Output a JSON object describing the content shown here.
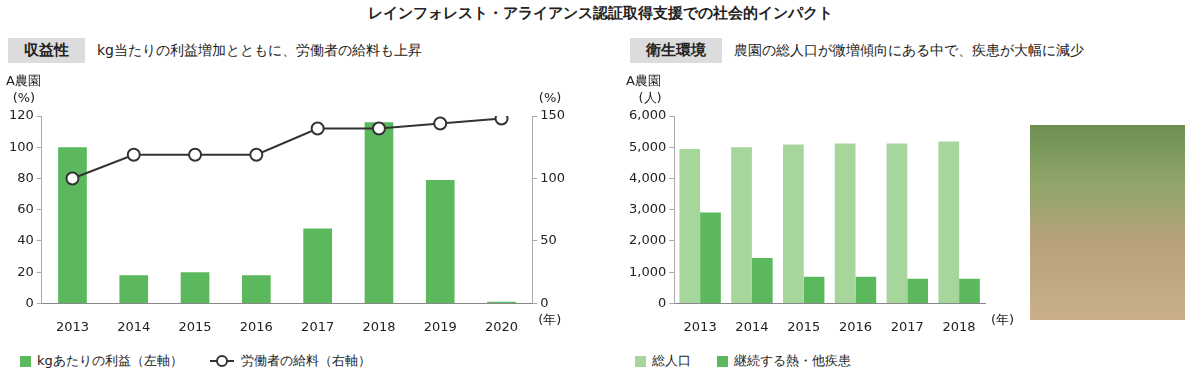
{
  "title": "レインフォレスト・アライアンス認証取得支援での社会的インパクト",
  "chart_data": [
    {
      "type": "bar",
      "title": "収益性",
      "subtitle": "kg当たりの利益増加とともに、労働者の給料も上昇",
      "annotations": [
        "A農園"
      ],
      "y_label": "(%)",
      "y2_label": "(%)",
      "x_label": "(年)",
      "categories": [
        "2013",
        "2014",
        "2015",
        "2016",
        "2017",
        "2018",
        "2019",
        "2020"
      ],
      "series": [
        {
          "name": "kgあたりの利益（左軸）",
          "type": "bar",
          "color": "#5cb85c",
          "values": [
            100,
            18,
            20,
            18,
            48,
            116,
            79,
            1
          ]
        },
        {
          "name": "労働者の給料（右軸）",
          "type": "line",
          "axis": "y2",
          "color": "#333333",
          "marker": "circle",
          "line_style": "solid",
          "values": [
            100,
            119,
            119,
            119,
            140,
            140,
            144,
            148
          ]
        }
      ],
      "ylim": [
        0,
        120
      ],
      "yticks": [
        0,
        20,
        40,
        60,
        80,
        100,
        120
      ],
      "y2lim": [
        0,
        150
      ],
      "y2ticks": [
        0,
        50,
        100,
        150
      ],
      "grid": false,
      "legend": "bottom-left"
    },
    {
      "type": "bar",
      "title": "衛生環境",
      "subtitle": "農園の総人口が微増傾向にある中で、疾患が大幅に減少",
      "annotations": [
        "A農園"
      ],
      "y_label": "(人)",
      "x_label": "(年)",
      "categories": [
        "2013",
        "2014",
        "2015",
        "2016",
        "2017",
        "2018"
      ],
      "series": [
        {
          "name": "総人口",
          "type": "bar",
          "color": "#a7d69c",
          "values": [
            4940,
            5000,
            5090,
            5120,
            5120,
            5180
          ]
        },
        {
          "name": "継続する熱・他疾患",
          "type": "bar",
          "color": "#5cb85c",
          "values": [
            2910,
            1455,
            850,
            850,
            790,
            790
          ]
        }
      ],
      "ylim": [
        0,
        6000
      ],
      "yticks": [
        0,
        {
          "value": 1000,
          "label": "1,000"
        },
        {
          "value": 2000,
          "label": "2,000"
        },
        {
          "value": 3000,
          "label": "3,000"
        },
        {
          "value": 4000,
          "label": "4,000"
        },
        {
          "value": 5000,
          "label": "5,000"
        },
        {
          "value": 6000,
          "label": "6,000"
        }
      ],
      "grid": false,
      "legend": "bottom-left"
    }
  ]
}
